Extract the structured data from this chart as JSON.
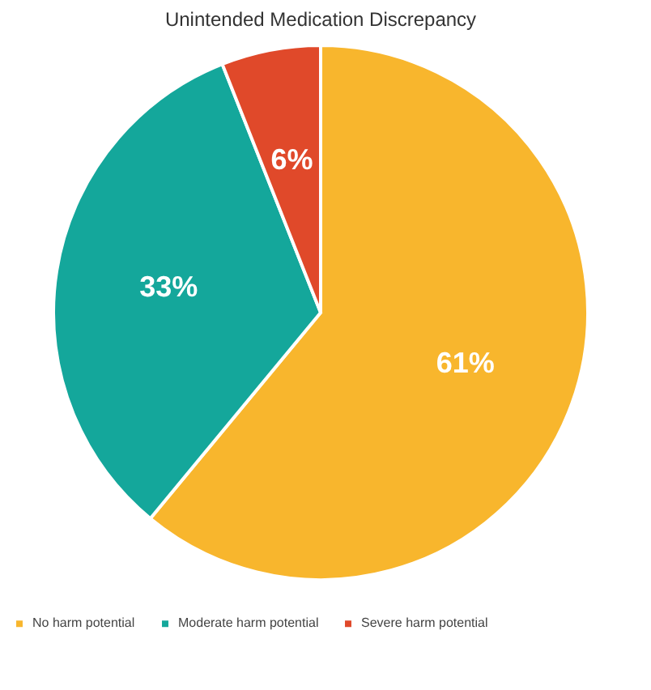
{
  "chart_data": {
    "type": "pie",
    "title": "Unintended Medication Discrepancy",
    "categories": [
      "No harm potential",
      "Moderate harm potential",
      "Severe harm potential"
    ],
    "values": [
      61,
      33,
      6
    ],
    "colors": [
      "#f8b62d",
      "#14a79b",
      "#e0492a"
    ],
    "value_labels": [
      "61%",
      "33%",
      "6%"
    ],
    "legend": "bottom"
  }
}
